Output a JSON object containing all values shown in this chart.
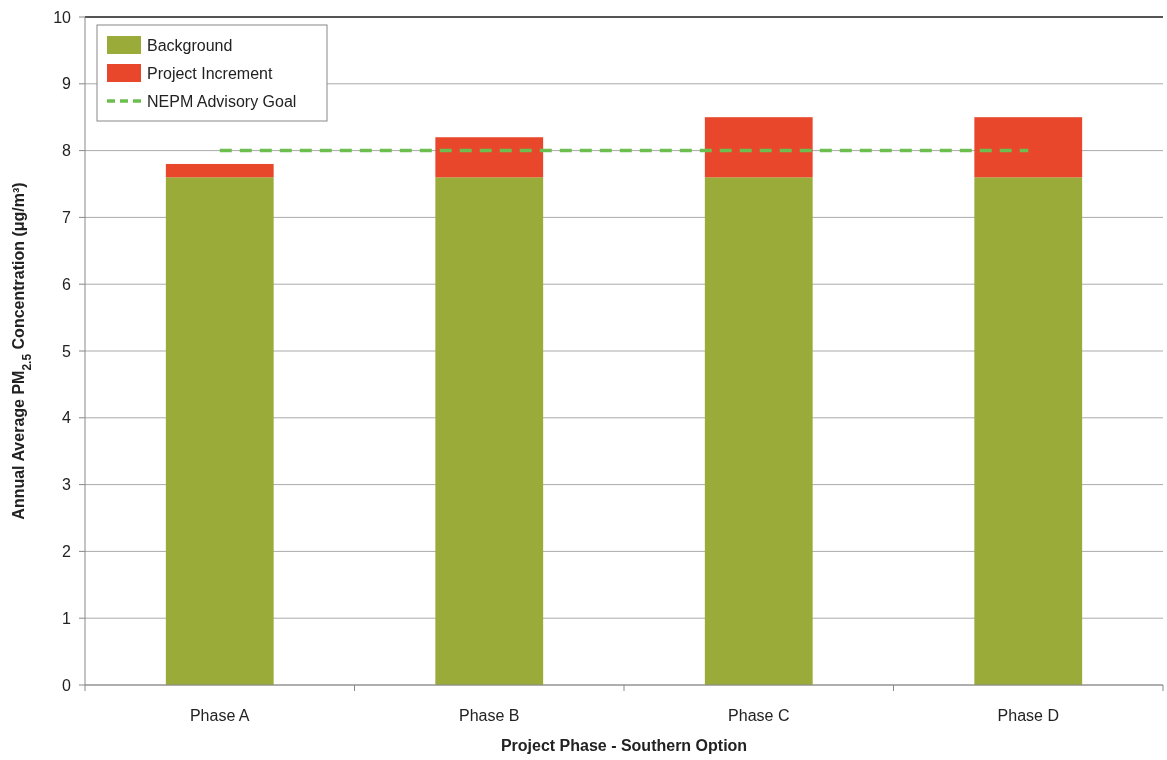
{
  "chart_data": {
    "type": "bar",
    "stacked": true,
    "xlabel": "Project Phase - Southern Option",
    "ylabel": "Annual Average PM$_{2.5}$ Concentration (μg/m³)",
    "categories": [
      "Phase A",
      "Phase B",
      "Phase C",
      "Phase D"
    ],
    "series": [
      {
        "name": "Background",
        "color": "#9aab3a",
        "values": [
          7.6,
          7.6,
          7.6,
          7.6
        ]
      },
      {
        "name": "Project Increment",
        "color": "#e8472b",
        "values": [
          0.2,
          0.6,
          0.9,
          0.9
        ]
      },
      {
        "name": "NEPM Advisory Goal",
        "type": "line",
        "line_style": "dashed",
        "color": "#6cbf4f",
        "values": [
          8,
          8,
          8,
          8
        ]
      }
    ],
    "ylim": [
      0,
      10
    ],
    "yticks": [
      0,
      1,
      2,
      3,
      4,
      5,
      6,
      7,
      8,
      9,
      10
    ],
    "grid": "y",
    "legend": "top left"
  }
}
